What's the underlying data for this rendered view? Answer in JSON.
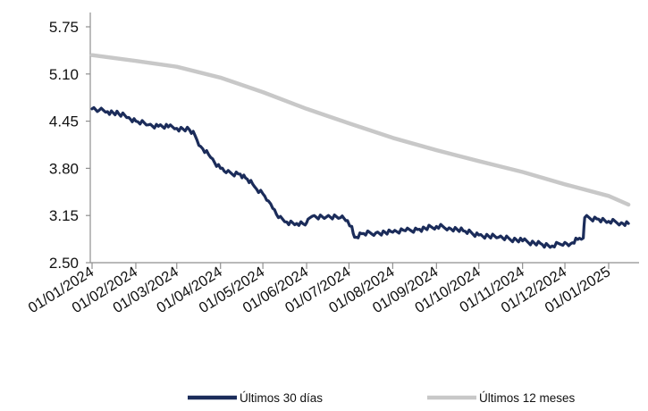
{
  "chart_data": {
    "type": "line",
    "title": "",
    "xlabel": "",
    "ylabel": "",
    "ylim": [
      2.5,
      5.75
    ],
    "yticks": [
      "2.50",
      "3.15",
      "3.80",
      "4.45",
      "5.10",
      "5.75"
    ],
    "x_tick_labels": [
      "01/01/2024",
      "01/02/2024",
      "01/03/2024",
      "01/04/2024",
      "01/05/2024",
      "01/06/2024",
      "01/07/2024",
      "01/08/2024",
      "01/09/2024",
      "01/10/2024",
      "01/11/2024",
      "01/12/2024",
      "01/01/2025"
    ],
    "legend_position": "bottom",
    "grid": false,
    "series": [
      {
        "name": "Últimos 30 días",
        "color": "#1b2c5a",
        "points": [
          [
            "01/01/2024",
            4.62
          ],
          [
            "06/01/2024",
            4.6
          ],
          [
            "12/01/2024",
            4.58
          ],
          [
            "20/01/2024",
            4.55
          ],
          [
            "27/01/2024",
            4.5
          ],
          [
            "01/02/2024",
            4.45
          ],
          [
            "10/02/2024",
            4.4
          ],
          [
            "17/02/2024",
            4.38
          ],
          [
            "24/02/2024",
            4.37
          ],
          [
            "01/03/2024",
            4.35
          ],
          [
            "10/03/2024",
            4.33
          ],
          [
            "14/03/2024",
            4.25
          ],
          [
            "18/03/2024",
            4.1
          ],
          [
            "25/03/2024",
            3.95
          ],
          [
            "01/04/2024",
            3.8
          ],
          [
            "05/04/2024",
            3.74
          ],
          [
            "15/04/2024",
            3.72
          ],
          [
            "20/04/2024",
            3.65
          ],
          [
            "25/04/2024",
            3.55
          ],
          [
            "01/05/2024",
            3.45
          ],
          [
            "05/05/2024",
            3.35
          ],
          [
            "08/05/2024",
            3.25
          ],
          [
            "12/05/2024",
            3.12
          ],
          [
            "18/05/2024",
            3.06
          ],
          [
            "25/05/2024",
            3.04
          ],
          [
            "31/05/2024",
            3.02
          ],
          [
            "02/06/2024",
            3.1
          ],
          [
            "05/06/2024",
            3.14
          ],
          [
            "15/06/2024",
            3.13
          ],
          [
            "25/06/2024",
            3.12
          ],
          [
            "30/06/2024",
            3.08
          ],
          [
            "03/07/2024",
            3.0
          ],
          [
            "05/07/2024",
            2.85
          ],
          [
            "10/07/2024",
            2.9
          ],
          [
            "20/07/2024",
            2.91
          ],
          [
            "01/08/2024",
            2.92
          ],
          [
            "10/08/2024",
            2.94
          ],
          [
            "20/08/2024",
            2.96
          ],
          [
            "01/09/2024",
            3.0
          ],
          [
            "10/09/2024",
            2.98
          ],
          [
            "20/09/2024",
            2.94
          ],
          [
            "01/10/2024",
            2.88
          ],
          [
            "15/10/2024",
            2.85
          ],
          [
            "01/11/2024",
            2.8
          ],
          [
            "15/11/2024",
            2.75
          ],
          [
            "22/11/2024",
            2.73
          ],
          [
            "01/12/2024",
            2.78
          ],
          [
            "05/12/2024",
            2.76
          ],
          [
            "10/12/2024",
            2.82
          ],
          [
            "14/12/2024",
            2.84
          ],
          [
            "15/12/2024",
            3.12
          ],
          [
            "25/12/2024",
            3.1
          ],
          [
            "01/01/2025",
            3.07
          ],
          [
            "10/01/2025",
            3.05
          ],
          [
            "15/01/2025",
            3.04
          ]
        ]
      },
      {
        "name": "Últimos 12 meses",
        "color": "#c8c8c8",
        "points": [
          [
            "01/01/2024",
            5.36
          ],
          [
            "01/02/2024",
            5.28
          ],
          [
            "01/03/2024",
            5.2
          ],
          [
            "01/04/2024",
            5.05
          ],
          [
            "01/05/2024",
            4.85
          ],
          [
            "01/06/2024",
            4.62
          ],
          [
            "01/07/2024",
            4.42
          ],
          [
            "01/08/2024",
            4.22
          ],
          [
            "01/09/2024",
            4.05
          ],
          [
            "01/10/2024",
            3.9
          ],
          [
            "01/11/2024",
            3.75
          ],
          [
            "01/12/2024",
            3.58
          ],
          [
            "01/01/2025",
            3.42
          ],
          [
            "15/01/2025",
            3.3
          ]
        ]
      }
    ]
  }
}
